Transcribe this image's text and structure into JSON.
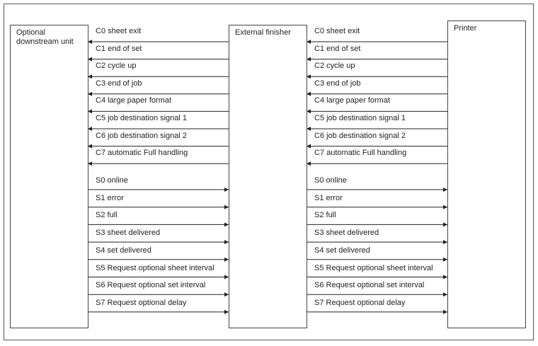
{
  "nodes": [
    {
      "label": "Optional downstream unit"
    },
    {
      "label": "External finisher"
    },
    {
      "label": "Printer"
    }
  ],
  "connections": [
    {
      "c_signals": [
        "C0 sheet exit",
        "C1 end of set",
        "C2 cycle up",
        "C3 end of job",
        "C4 large paper format",
        "C5 job destination signal 1",
        "C6 job destination signal 2",
        "C7 automatic Full handling"
      ],
      "s_signals": [
        "S0 online",
        "S1 error",
        "S2 full",
        "S3 sheet delivered",
        "S4 set delivered",
        "S5 Request optional sheet interval",
        "S6 Request optional set interval",
        "S7 Request optional delay"
      ]
    },
    {
      "c_signals": [
        "C0 sheet exit",
        "C1 end of set",
        "C2 cycle up",
        "C3 end of job",
        "C4 large paper format",
        "C5 job destination signal 1",
        "C6 job destination signal 2",
        "C7 automatic Full handling"
      ],
      "s_signals": [
        "S0 online",
        "S1 error",
        "S2 full",
        "S3 sheet delivered",
        "S4 set delivered",
        "S5 Request optional sheet interval",
        "S6 Request optional set interval",
        "S7 Request optional delay"
      ]
    }
  ]
}
